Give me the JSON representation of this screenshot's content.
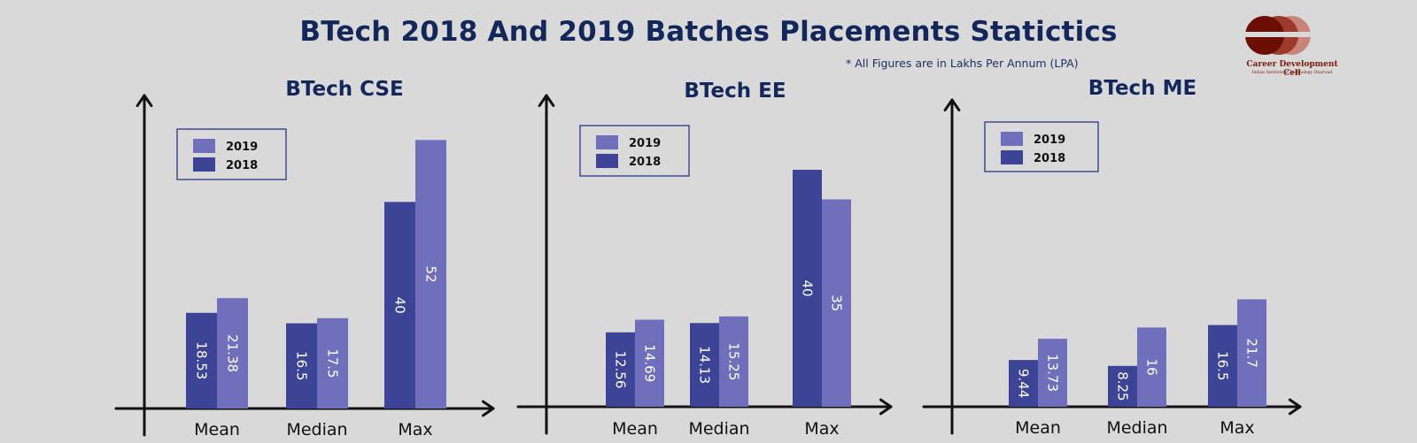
{
  "title": "BTech 2018 And 2019 Batches Placements Statictics",
  "note": "* All Figures are in Lakhs Per Annum (LPA)",
  "logo": {
    "line1": "Career Development Cell",
    "line2": "Indian Institute of Technology Dharwad",
    "colors": [
      "#6b0f05",
      "#9c3a2c",
      "#c9847a"
    ]
  },
  "colors": {
    "s2018": "#3d4496",
    "s2019": "#6f6fbb",
    "axis": "#111111",
    "legend_border": "#1c2a7a"
  },
  "chart_data": [
    {
      "type": "bar",
      "title": "BTech CSE",
      "categories": [
        "Mean",
        "Median",
        "Max"
      ],
      "legend_order": [
        "2019",
        "2018"
      ],
      "series": [
        {
          "name": "2018",
          "values": [
            18.53,
            16.5,
            40
          ]
        },
        {
          "name": "2019",
          "values": [
            21.38,
            17.5,
            52
          ]
        }
      ],
      "data_labels": {
        "2018": [
          "18.53",
          "16.5",
          "40"
        ],
        "2019": [
          "21.38",
          "17.5",
          "52"
        ]
      },
      "ylim": [
        0,
        60
      ],
      "grid": false,
      "legend": "top-left"
    },
    {
      "type": "bar",
      "title": "BTech EE",
      "categories": [
        "Mean",
        "Median",
        "Max"
      ],
      "legend_order": [
        "2019",
        "2018"
      ],
      "series": [
        {
          "name": "2018",
          "values": [
            12.56,
            14.13,
            40
          ]
        },
        {
          "name": "2019",
          "values": [
            14.69,
            15.25,
            35
          ]
        }
      ],
      "data_labels": {
        "2018": [
          "12.56",
          "14.13",
          "40"
        ],
        "2019": [
          "14.69",
          "15.25",
          "35"
        ]
      },
      "ylim": [
        0,
        60
      ],
      "grid": false,
      "legend": "top-left"
    },
    {
      "type": "bar",
      "title": "BTech ME",
      "categories": [
        "Mean",
        "Median",
        "Max"
      ],
      "legend_order": [
        "2019",
        "2018"
      ],
      "series": [
        {
          "name": "2018",
          "values": [
            9.44,
            8.25,
            16.5
          ]
        },
        {
          "name": "2019",
          "values": [
            13.73,
            16,
            21.7
          ]
        }
      ],
      "data_labels": {
        "2018": [
          "9.44",
          "8.25",
          "16.5"
        ],
        "2019": [
          "13.73",
          "16",
          "21.7"
        ]
      },
      "ylim": [
        0,
        36
      ],
      "grid": false,
      "legend": "top-left"
    }
  ]
}
